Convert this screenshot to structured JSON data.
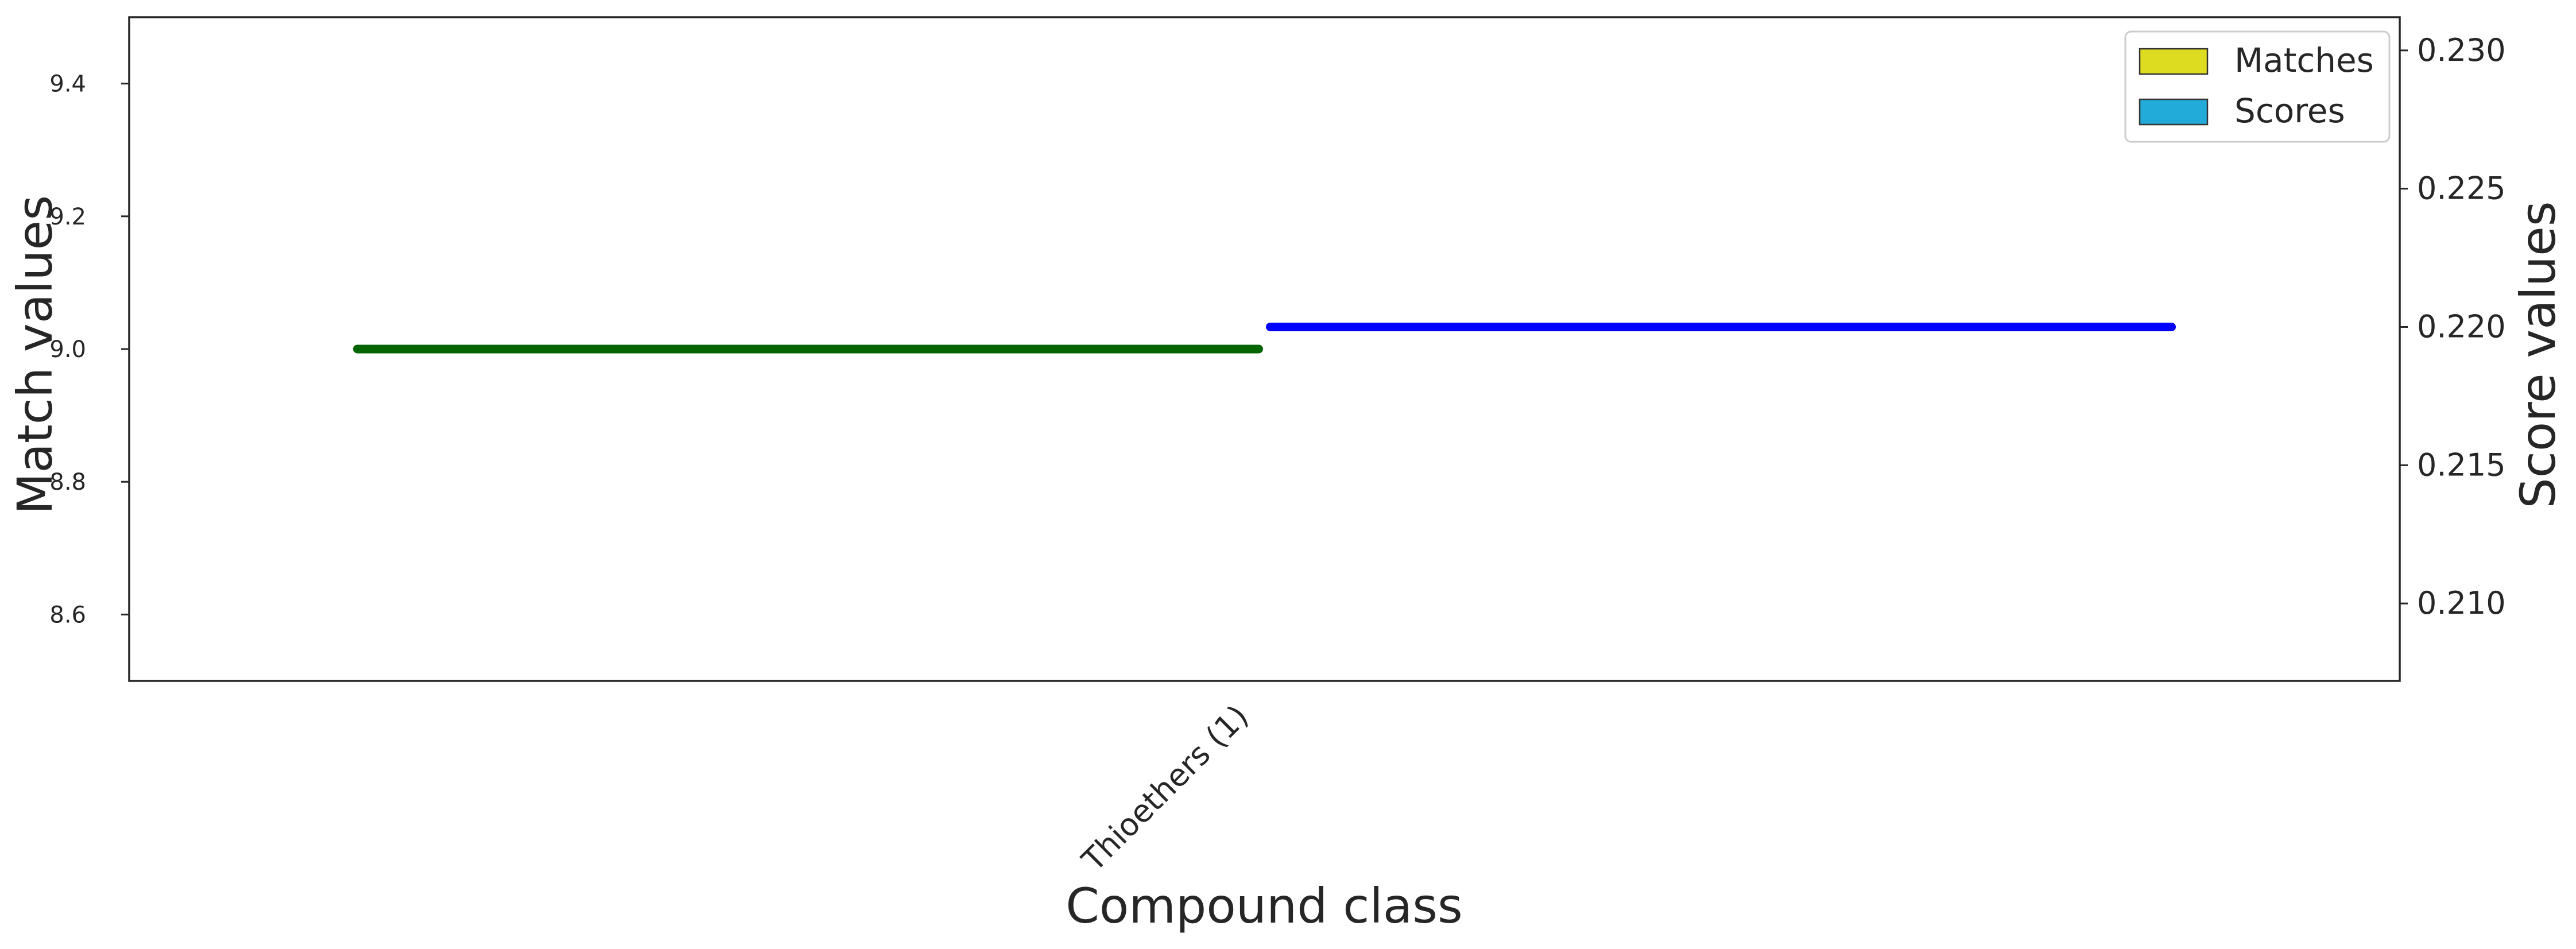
{
  "chart_data": {
    "type": "bar",
    "categories": [
      "Thioethers (1)"
    ],
    "xlabel": "Compound class",
    "series": [
      {
        "name": "Matches",
        "axis": "left",
        "values": [
          9
        ],
        "legend_color": "#dedc20",
        "line_color": "#006400"
      },
      {
        "name": "Scores",
        "axis": "right",
        "values": [
          0.22
        ],
        "legend_color": "#22abd9",
        "line_color": "#0000ff"
      }
    ],
    "left_axis": {
      "label": "Match values",
      "ylim": [
        8.5,
        9.5
      ],
      "ticks": [
        8.6,
        8.8,
        9.0,
        9.2,
        9.4
      ],
      "tick_labels": [
        "8.6",
        "8.8",
        "9.0",
        "9.2",
        "9.4"
      ]
    },
    "right_axis": {
      "label": "Score values",
      "ylim": [
        0.2072,
        0.2312
      ],
      "ticks": [
        0.21,
        0.215,
        0.22,
        0.225,
        0.23
      ],
      "tick_labels": [
        "0.210",
        "0.215",
        "0.220",
        "0.225",
        "0.230"
      ]
    },
    "legend": {
      "position": "top-right",
      "entries": [
        "Matches",
        "Scores"
      ]
    },
    "grid": false
  }
}
